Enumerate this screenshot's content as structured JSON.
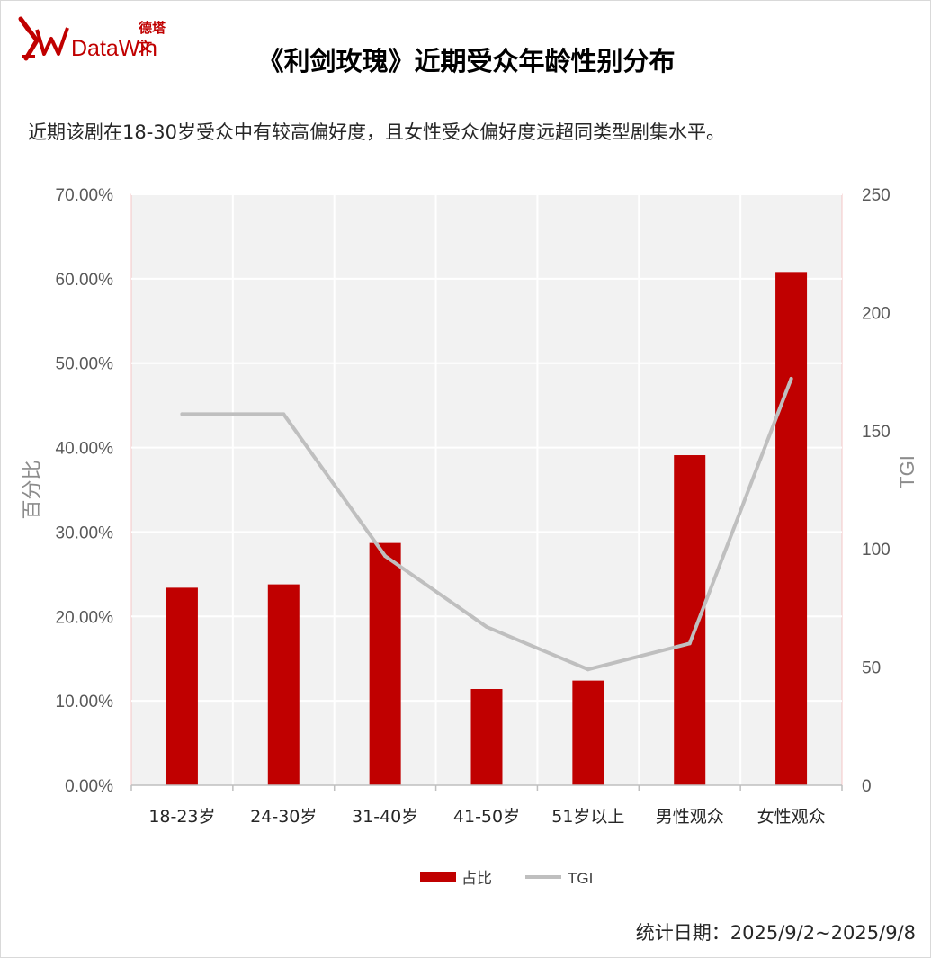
{
  "title": "《利剑玫瑰》近期受众年龄性别分布",
  "subtitle": "近期该剧在18-30岁受众中有较高偏好度，且女性受众偏好度远超同类型剧集水平。",
  "logo": {
    "cn": "德塔文",
    "en": "DataWin"
  },
  "footer": "统计日期：2025/9/2~2025/9/8",
  "colors": {
    "bar": "#c00000",
    "line": "#bfbfbf",
    "plot_bg": "#f2f2f2",
    "grid": "#ffffff"
  },
  "chart_data": {
    "type": "bar",
    "categories": [
      "18-23岁",
      "24-30岁",
      "31-40岁",
      "41-50岁",
      "51岁以上",
      "男性观众",
      "女性观众"
    ],
    "series": [
      {
        "name": "占比",
        "type": "bar",
        "axis": "left",
        "values": [
          23.4,
          23.8,
          28.7,
          11.4,
          12.4,
          39.1,
          60.8
        ]
      },
      {
        "name": "TGI",
        "type": "line",
        "axis": "right",
        "values": [
          157,
          157,
          97,
          67,
          49,
          60,
          172
        ]
      }
    ],
    "ylabel": "百分比",
    "y2label": "TGI",
    "ylim": [
      0,
      70
    ],
    "y2lim": [
      0,
      250
    ],
    "yticks": [
      "0.00%",
      "10.00%",
      "20.00%",
      "30.00%",
      "40.00%",
      "50.00%",
      "60.00%",
      "70.00%"
    ],
    "y2ticks": [
      "0",
      "50",
      "100",
      "150",
      "200",
      "250"
    ],
    "grid": true,
    "legend_position": "bottom"
  }
}
